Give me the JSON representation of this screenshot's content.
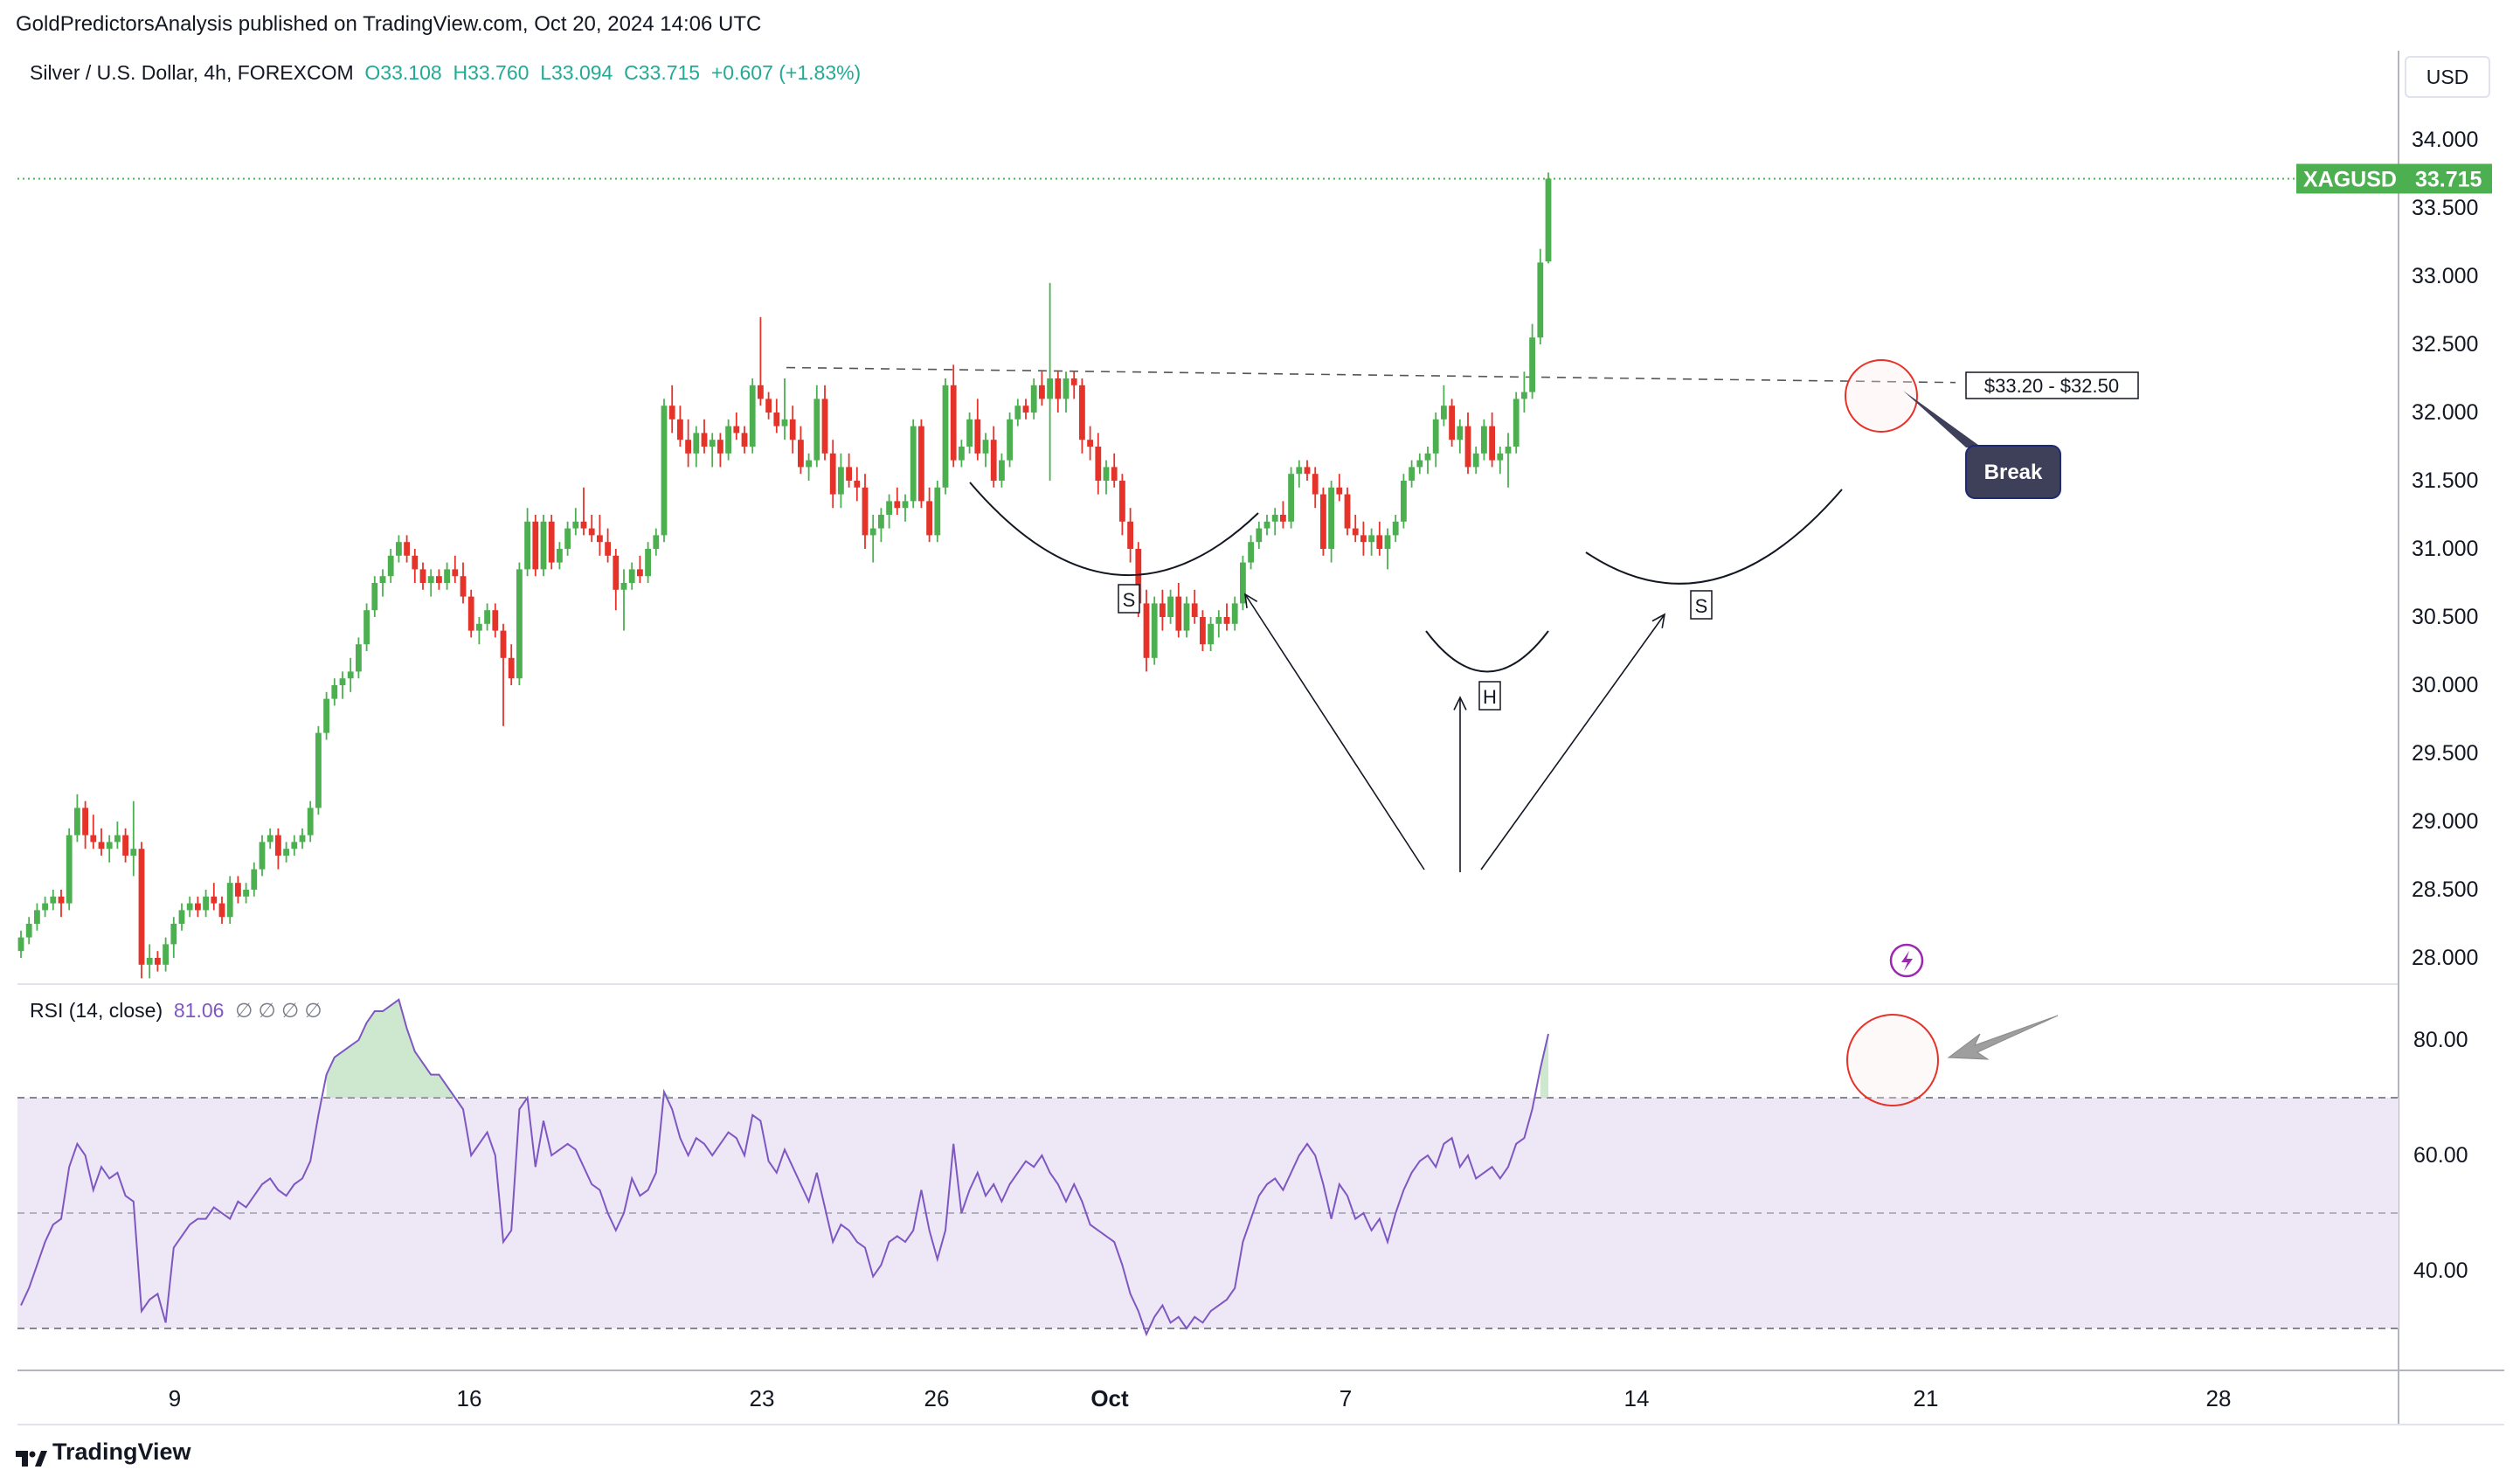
{
  "header": {
    "publisher": "GoldPredictorsAnalysis published on TradingView.com, Oct 20, 2024 14:06 UTC",
    "title": "Silver / U.S. Dollar, 4h, FOREXCOM",
    "open": "O33.108",
    "high": "H33.760",
    "low": "L33.094",
    "close": "C33.715",
    "change": "+0.607 (+1.83%)"
  },
  "currency_button": "USD",
  "price_tag": {
    "symbol": "XAGUSD",
    "value": "33.715",
    "color": "#4caf50"
  },
  "rsi_header": {
    "label": "RSI (14, close)",
    "value": "81.06",
    "na": "∅ ∅ ∅ ∅"
  },
  "brand": "TradingView",
  "annotations": {
    "range_label": "$33.20 - $32.50",
    "break_label": "Break",
    "left_shoulder": "S",
    "head": "H",
    "right_shoulder": "S"
  },
  "colors": {
    "up": "#4caf50",
    "down": "#e5332a",
    "rsi": "#7e57c2",
    "rsi_band": "#ede7f6",
    "circle": "#e5332a"
  },
  "chart_data": {
    "type": "candlestick",
    "symbol": "XAGUSD",
    "timeframe": "4h",
    "price_axis": {
      "ticks": [
        "34.000",
        "33.500",
        "33.000",
        "32.500",
        "32.000",
        "31.500",
        "31.000",
        "30.500",
        "30.000",
        "29.500",
        "29.000",
        "28.500",
        "28.000"
      ],
      "range": [
        27.9,
        34.25
      ]
    },
    "time_axis": {
      "ticks": [
        "9",
        "16",
        "23",
        "26",
        "Oct",
        "7",
        "14",
        "21",
        "28"
      ]
    },
    "last_price": 33.715,
    "neckline": 32.3,
    "candles": [
      [
        28.05,
        28.2,
        28.0,
        28.15
      ],
      [
        28.15,
        28.3,
        28.1,
        28.25
      ],
      [
        28.25,
        28.4,
        28.2,
        28.35
      ],
      [
        28.35,
        28.45,
        28.3,
        28.4
      ],
      [
        28.4,
        28.5,
        28.35,
        28.45
      ],
      [
        28.45,
        28.5,
        28.3,
        28.4
      ],
      [
        28.4,
        28.95,
        28.35,
        28.9
      ],
      [
        28.9,
        29.2,
        28.85,
        29.1
      ],
      [
        29.1,
        29.15,
        28.8,
        28.9
      ],
      [
        28.9,
        29.05,
        28.8,
        28.85
      ],
      [
        28.85,
        28.95,
        28.75,
        28.8
      ],
      [
        28.8,
        28.9,
        28.7,
        28.85
      ],
      [
        28.85,
        29.0,
        28.8,
        28.9
      ],
      [
        28.9,
        28.95,
        28.7,
        28.75
      ],
      [
        28.75,
        29.15,
        28.6,
        28.8
      ],
      [
        28.8,
        28.85,
        27.85,
        27.95
      ],
      [
        27.95,
        28.1,
        27.85,
        28.0
      ],
      [
        28.0,
        28.05,
        27.9,
        27.95
      ],
      [
        27.95,
        28.15,
        27.9,
        28.1
      ],
      [
        28.1,
        28.3,
        28.0,
        28.25
      ],
      [
        28.25,
        28.4,
        28.2,
        28.35
      ],
      [
        28.35,
        28.45,
        28.3,
        28.4
      ],
      [
        28.4,
        28.45,
        28.3,
        28.35
      ],
      [
        28.35,
        28.5,
        28.3,
        28.45
      ],
      [
        28.45,
        28.55,
        28.35,
        28.4
      ],
      [
        28.4,
        28.45,
        28.25,
        28.3
      ],
      [
        28.3,
        28.6,
        28.25,
        28.55
      ],
      [
        28.55,
        28.6,
        28.4,
        28.45
      ],
      [
        28.45,
        28.55,
        28.4,
        28.5
      ],
      [
        28.5,
        28.7,
        28.45,
        28.65
      ],
      [
        28.65,
        28.9,
        28.6,
        28.85
      ],
      [
        28.85,
        28.95,
        28.8,
        28.9
      ],
      [
        28.9,
        28.95,
        28.65,
        28.75
      ],
      [
        28.75,
        28.85,
        28.7,
        28.8
      ],
      [
        28.8,
        28.9,
        28.75,
        28.85
      ],
      [
        28.85,
        28.95,
        28.8,
        28.9
      ],
      [
        28.9,
        29.15,
        28.85,
        29.1
      ],
      [
        29.1,
        29.7,
        29.05,
        29.65
      ],
      [
        29.65,
        29.95,
        29.6,
        29.9
      ],
      [
        29.9,
        30.05,
        29.85,
        30.0
      ],
      [
        30.0,
        30.1,
        29.9,
        30.05
      ],
      [
        30.05,
        30.2,
        29.95,
        30.1
      ],
      [
        30.1,
        30.35,
        30.05,
        30.3
      ],
      [
        30.3,
        30.6,
        30.25,
        30.55
      ],
      [
        30.55,
        30.8,
        30.5,
        30.75
      ],
      [
        30.75,
        30.85,
        30.65,
        30.8
      ],
      [
        30.8,
        31.0,
        30.75,
        30.95
      ],
      [
        30.95,
        31.1,
        30.9,
        31.05
      ],
      [
        31.05,
        31.1,
        30.9,
        30.95
      ],
      [
        30.95,
        31.0,
        30.75,
        30.85
      ],
      [
        30.85,
        30.9,
        30.7,
        30.75
      ],
      [
        30.75,
        30.85,
        30.65,
        30.8
      ],
      [
        30.8,
        30.85,
        30.7,
        30.75
      ],
      [
        30.75,
        30.9,
        30.7,
        30.85
      ],
      [
        30.85,
        30.95,
        30.75,
        30.8
      ],
      [
        30.8,
        30.9,
        30.6,
        30.65
      ],
      [
        30.65,
        30.7,
        30.35,
        30.4
      ],
      [
        30.4,
        30.5,
        30.3,
        30.45
      ],
      [
        30.45,
        30.6,
        30.4,
        30.55
      ],
      [
        30.55,
        30.6,
        30.35,
        30.4
      ],
      [
        30.4,
        30.45,
        29.7,
        30.2
      ],
      [
        30.2,
        30.3,
        30.0,
        30.05
      ],
      [
        30.05,
        30.9,
        30.0,
        30.85
      ],
      [
        30.85,
        31.3,
        30.8,
        31.2
      ],
      [
        31.2,
        31.25,
        30.8,
        30.85
      ],
      [
        30.85,
        31.25,
        30.8,
        31.2
      ],
      [
        31.2,
        31.25,
        30.85,
        30.9
      ],
      [
        30.9,
        31.05,
        30.85,
        31.0
      ],
      [
        31.0,
        31.2,
        30.95,
        31.15
      ],
      [
        31.15,
        31.3,
        31.1,
        31.2
      ],
      [
        31.2,
        31.45,
        31.1,
        31.15
      ],
      [
        31.15,
        31.25,
        31.05,
        31.1
      ],
      [
        31.1,
        31.25,
        30.95,
        31.05
      ],
      [
        31.05,
        31.15,
        30.9,
        30.95
      ],
      [
        30.95,
        31.0,
        30.55,
        30.7
      ],
      [
        30.7,
        30.85,
        30.4,
        30.75
      ],
      [
        30.75,
        30.9,
        30.7,
        30.85
      ],
      [
        30.85,
        30.95,
        30.75,
        30.8
      ],
      [
        30.8,
        31.05,
        30.75,
        31.0
      ],
      [
        31.0,
        31.15,
        30.95,
        31.1
      ],
      [
        31.1,
        32.1,
        31.05,
        32.05
      ],
      [
        32.05,
        32.2,
        31.85,
        31.95
      ],
      [
        31.95,
        32.05,
        31.75,
        31.8
      ],
      [
        31.8,
        31.95,
        31.6,
        31.7
      ],
      [
        31.7,
        31.9,
        31.6,
        31.85
      ],
      [
        31.85,
        31.95,
        31.7,
        31.75
      ],
      [
        31.75,
        31.85,
        31.6,
        31.8
      ],
      [
        31.8,
        31.85,
        31.6,
        31.7
      ],
      [
        31.7,
        31.95,
        31.65,
        31.9
      ],
      [
        31.9,
        32.0,
        31.8,
        31.85
      ],
      [
        31.85,
        31.9,
        31.7,
        31.75
      ],
      [
        31.75,
        32.25,
        31.7,
        32.2
      ],
      [
        32.2,
        32.7,
        32.05,
        32.1
      ],
      [
        32.1,
        32.15,
        31.95,
        32.0
      ],
      [
        32.0,
        32.1,
        31.85,
        31.9
      ],
      [
        31.9,
        32.25,
        31.8,
        31.95
      ],
      [
        31.95,
        32.05,
        31.7,
        31.8
      ],
      [
        31.8,
        31.9,
        31.55,
        31.6
      ],
      [
        31.6,
        31.7,
        31.5,
        31.65
      ],
      [
        31.65,
        32.2,
        31.6,
        32.1
      ],
      [
        32.1,
        32.2,
        31.65,
        31.7
      ],
      [
        31.7,
        31.8,
        31.3,
        31.4
      ],
      [
        31.4,
        31.7,
        31.3,
        31.6
      ],
      [
        31.6,
        31.7,
        31.45,
        31.5
      ],
      [
        31.5,
        31.6,
        31.35,
        31.45
      ],
      [
        31.45,
        31.55,
        31.0,
        31.1
      ],
      [
        31.1,
        31.25,
        30.9,
        31.15
      ],
      [
        31.15,
        31.3,
        31.05,
        31.25
      ],
      [
        31.25,
        31.4,
        31.15,
        31.35
      ],
      [
        31.35,
        31.45,
        31.25,
        31.3
      ],
      [
        31.3,
        31.4,
        31.2,
        31.35
      ],
      [
        31.35,
        31.95,
        31.3,
        31.9
      ],
      [
        31.9,
        31.95,
        31.3,
        31.35
      ],
      [
        31.35,
        31.45,
        31.05,
        31.1
      ],
      [
        31.1,
        31.5,
        31.05,
        31.45
      ],
      [
        31.45,
        32.25,
        31.4,
        32.2
      ],
      [
        32.2,
        32.35,
        31.6,
        31.65
      ],
      [
        31.65,
        31.8,
        31.6,
        31.75
      ],
      [
        31.75,
        32.0,
        31.7,
        31.95
      ],
      [
        31.95,
        32.1,
        31.65,
        31.7
      ],
      [
        31.7,
        31.85,
        31.6,
        31.8
      ],
      [
        31.8,
        31.9,
        31.45,
        31.5
      ],
      [
        31.5,
        31.7,
        31.45,
        31.65
      ],
      [
        31.65,
        32.0,
        31.6,
        31.95
      ],
      [
        31.95,
        32.1,
        31.9,
        32.05
      ],
      [
        32.05,
        32.1,
        31.95,
        32.0
      ],
      [
        32.0,
        32.25,
        31.95,
        32.2
      ],
      [
        32.2,
        32.3,
        32.05,
        32.1
      ],
      [
        32.1,
        32.95,
        31.5,
        32.25
      ],
      [
        32.25,
        32.3,
        32.0,
        32.1
      ],
      [
        32.1,
        32.3,
        32.0,
        32.25
      ],
      [
        32.25,
        32.3,
        32.1,
        32.2
      ],
      [
        32.2,
        32.25,
        31.7,
        31.8
      ],
      [
        31.8,
        31.9,
        31.65,
        31.75
      ],
      [
        31.75,
        31.85,
        31.4,
        31.5
      ],
      [
        31.5,
        31.65,
        31.4,
        31.6
      ],
      [
        31.6,
        31.7,
        31.45,
        31.5
      ],
      [
        31.5,
        31.55,
        31.1,
        31.2
      ],
      [
        31.2,
        31.3,
        30.9,
        31.0
      ],
      [
        31.0,
        31.05,
        30.5,
        30.6
      ],
      [
        30.6,
        30.7,
        30.1,
        30.2
      ],
      [
        30.2,
        30.65,
        30.15,
        30.6
      ],
      [
        30.6,
        30.7,
        30.4,
        30.5
      ],
      [
        30.5,
        30.7,
        30.45,
        30.65
      ],
      [
        30.65,
        30.75,
        30.35,
        30.4
      ],
      [
        30.4,
        30.65,
        30.35,
        30.6
      ],
      [
        30.6,
        30.7,
        30.45,
        30.5
      ],
      [
        30.5,
        30.55,
        30.25,
        30.3
      ],
      [
        30.3,
        30.5,
        30.25,
        30.45
      ],
      [
        30.45,
        30.55,
        30.35,
        30.5
      ],
      [
        30.5,
        30.6,
        30.4,
        30.45
      ],
      [
        30.45,
        30.65,
        30.4,
        30.6
      ],
      [
        30.6,
        30.95,
        30.55,
        30.9
      ],
      [
        30.9,
        31.1,
        30.85,
        31.05
      ],
      [
        31.05,
        31.2,
        31.0,
        31.15
      ],
      [
        31.15,
        31.25,
        31.1,
        31.2
      ],
      [
        31.2,
        31.3,
        31.1,
        31.25
      ],
      [
        31.25,
        31.35,
        31.15,
        31.2
      ],
      [
        31.2,
        31.6,
        31.15,
        31.55
      ],
      [
        31.55,
        31.65,
        31.45,
        31.6
      ],
      [
        31.6,
        31.65,
        31.5,
        31.55
      ],
      [
        31.55,
        31.6,
        31.3,
        31.4
      ],
      [
        31.4,
        31.45,
        30.95,
        31.0
      ],
      [
        31.0,
        31.5,
        30.9,
        31.45
      ],
      [
        31.45,
        31.55,
        31.35,
        31.4
      ],
      [
        31.4,
        31.45,
        31.1,
        31.15
      ],
      [
        31.15,
        31.25,
        31.05,
        31.1
      ],
      [
        31.1,
        31.2,
        30.95,
        31.05
      ],
      [
        31.05,
        31.15,
        30.95,
        31.1
      ],
      [
        31.1,
        31.2,
        30.95,
        31.0
      ],
      [
        31.0,
        31.15,
        30.85,
        31.1
      ],
      [
        31.1,
        31.25,
        31.05,
        31.2
      ],
      [
        31.2,
        31.55,
        31.15,
        31.5
      ],
      [
        31.5,
        31.65,
        31.45,
        31.6
      ],
      [
        31.6,
        31.7,
        31.55,
        31.65
      ],
      [
        31.65,
        31.75,
        31.55,
        31.7
      ],
      [
        31.7,
        32.0,
        31.6,
        31.95
      ],
      [
        31.95,
        32.2,
        31.9,
        32.05
      ],
      [
        32.05,
        32.1,
        31.75,
        31.8
      ],
      [
        31.8,
        31.95,
        31.7,
        31.9
      ],
      [
        31.9,
        32.0,
        31.55,
        31.6
      ],
      [
        31.6,
        31.75,
        31.55,
        31.7
      ],
      [
        31.7,
        31.95,
        31.65,
        31.9
      ],
      [
        31.9,
        32.0,
        31.6,
        31.65
      ],
      [
        31.65,
        31.75,
        31.55,
        31.7
      ],
      [
        31.7,
        31.85,
        31.45,
        31.75
      ],
      [
        31.75,
        32.15,
        31.7,
        32.1
      ],
      [
        32.1,
        32.3,
        32.0,
        32.15
      ],
      [
        32.15,
        32.65,
        32.1,
        32.55
      ],
      [
        32.55,
        33.2,
        32.5,
        33.1
      ],
      [
        33.108,
        33.76,
        33.094,
        33.715
      ]
    ],
    "rsi": {
      "label": "RSI (14, close)",
      "last": 81.06,
      "bands": [
        70,
        50,
        30
      ],
      "axis_ticks": [
        "80.00",
        "60.00",
        "40.00"
      ],
      "range": [
        25,
        89
      ],
      "values": [
        34,
        37,
        41,
        45,
        48,
        49,
        58,
        62,
        60,
        54,
        58,
        56,
        57,
        53,
        52,
        33,
        35,
        36,
        31,
        44,
        46,
        48,
        49,
        49,
        51,
        50,
        49,
        52,
        51,
        53,
        55,
        56,
        54,
        53,
        55,
        56,
        59,
        67,
        74,
        77,
        78,
        79,
        80,
        83,
        85,
        85,
        86,
        87,
        82,
        78,
        76,
        74,
        74,
        72,
        70,
        68,
        60,
        62,
        64,
        60,
        45,
        47,
        68,
        70,
        58,
        66,
        60,
        61,
        62,
        61,
        58,
        55,
        54,
        50,
        47,
        50,
        56,
        53,
        54,
        57,
        71,
        68,
        63,
        60,
        63,
        62,
        60,
        62,
        64,
        63,
        60,
        67,
        66,
        59,
        57,
        61,
        58,
        55,
        52,
        57,
        51,
        45,
        48,
        47,
        45,
        44,
        39,
        41,
        45,
        46,
        45,
        47,
        54,
        47,
        42,
        47,
        62,
        50,
        54,
        57,
        53,
        55,
        52,
        55,
        57,
        59,
        58,
        60,
        57,
        55,
        52,
        55,
        52,
        48,
        47,
        46,
        45,
        41,
        36,
        33,
        29,
        32,
        34,
        31,
        32,
        30,
        32,
        31,
        33,
        34,
        35,
        37,
        45,
        49,
        53,
        55,
        56,
        54,
        57,
        60,
        62,
        60,
        55,
        49,
        55,
        53,
        49,
        50,
        47,
        49,
        45,
        50,
        54,
        57,
        59,
        60,
        58,
        62,
        63,
        58,
        60,
        56,
        57,
        58,
        56,
        58,
        62,
        63,
        68,
        75,
        81.06
      ]
    }
  }
}
